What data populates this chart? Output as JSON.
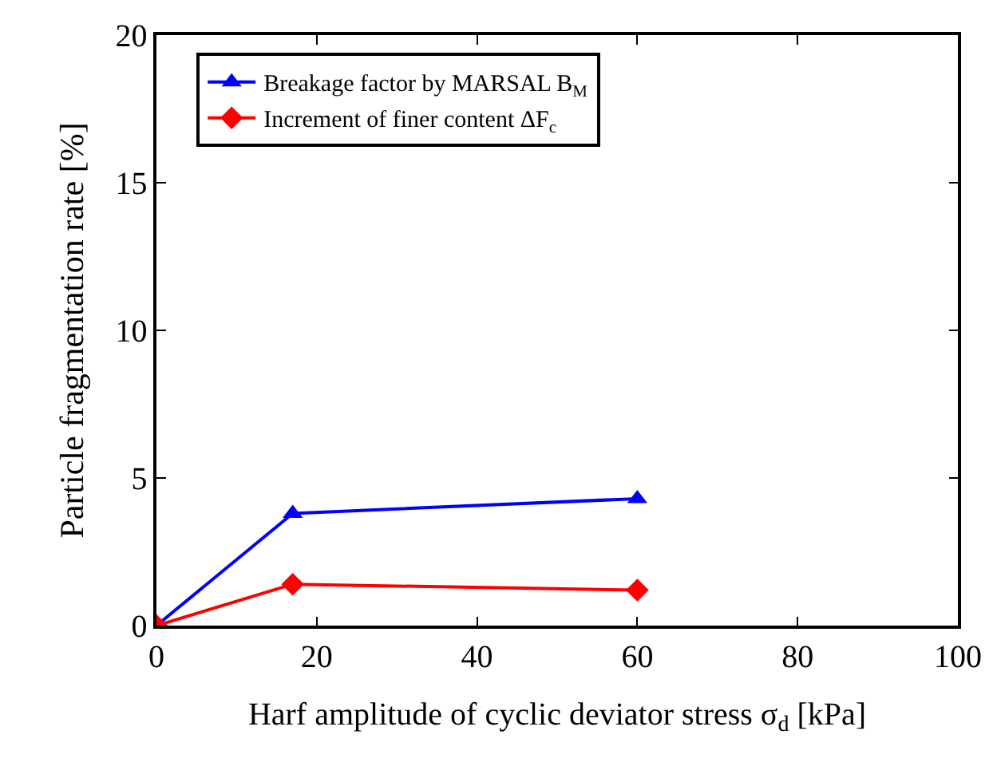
{
  "chart_data": {
    "type": "line",
    "xlabel": "Harf amplitude of cyclic deviator stress σ$_{d}$ [kPa]",
    "ylabel": "Particle fragmentation rate [%]",
    "x": [
      0,
      17,
      60
    ],
    "series": [
      {
        "name": "Breakage factor by MARSAL B$_{M}$",
        "color": "#0000ff",
        "marker": "triangle",
        "values": [
          0,
          3.8,
          4.3
        ]
      },
      {
        "name": "Increment of finer content ΔF$_{c}$",
        "color": "#ff0000",
        "marker": "diamond",
        "values": [
          0,
          1.4,
          1.2
        ]
      }
    ],
    "xlim": [
      0,
      100
    ],
    "xticks": [
      0,
      20,
      40,
      60,
      80,
      100
    ],
    "ylim": [
      0,
      20
    ],
    "yticks": [
      0,
      5,
      10,
      15,
      20
    ],
    "grid": false,
    "legend": "top left",
    "line_style": "solid"
  }
}
